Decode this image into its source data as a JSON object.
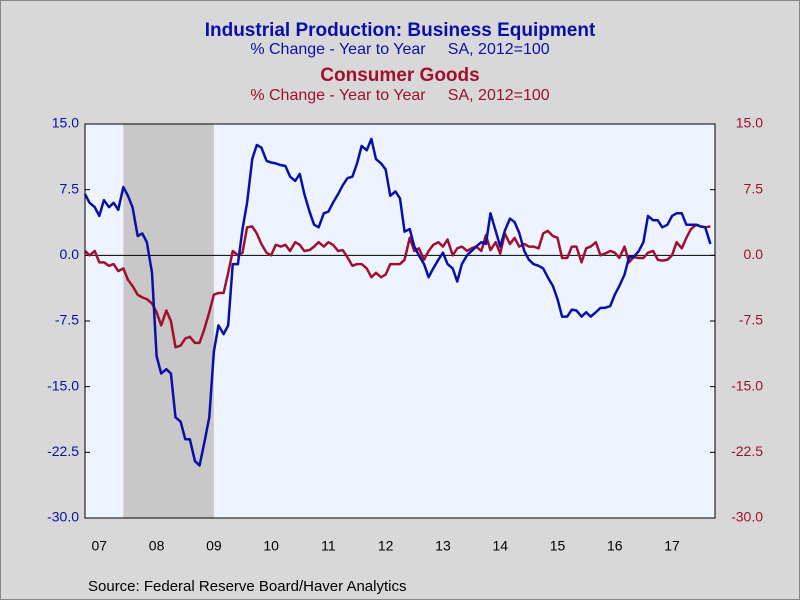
{
  "chart_data": {
    "type": "line",
    "series": [
      {
        "name": "Industrial Production: Business Equipment",
        "subtitle": "% Change - Year to Year     SA, 2012=100",
        "color": "#0a0fa8",
        "axis": "y",
        "values": [
          7.0,
          6.0,
          5.5,
          4.5,
          6.3,
          5.5,
          6.0,
          5.2,
          7.8,
          6.8,
          5.5,
          2.2,
          2.5,
          1.5,
          -2.0,
          -11.5,
          -13.5,
          -13.0,
          -13.5,
          -18.5,
          -19.0,
          -21.0,
          -21.0,
          -23.5,
          -24.0,
          -21.5,
          -18.5,
          -11.0,
          -8.0,
          -9.0,
          -8.0,
          -1.0,
          -1.0,
          3.0,
          6.0,
          11.0,
          12.6,
          12.3,
          10.8,
          10.6,
          10.5,
          10.3,
          10.2,
          9.0,
          8.5,
          9.3,
          7.0,
          5.0,
          3.5,
          3.2,
          4.8,
          5.0,
          6.0,
          7.0,
          8.0,
          8.8,
          9.0,
          10.5,
          12.5,
          12.0,
          13.3,
          11.0,
          10.5,
          9.8,
          6.8,
          7.3,
          6.5,
          2.7,
          3.0,
          1.0,
          0.0,
          -1.0,
          -2.5,
          -1.5,
          -0.5,
          0.3,
          -1.0,
          -1.5,
          -3.0,
          -1.0,
          0.0,
          0.5,
          1.0,
          1.5,
          1.3,
          4.8,
          2.8,
          1.0,
          2.8,
          4.2,
          3.8,
          2.6,
          0.5,
          -0.5,
          -1.0,
          -1.2,
          -1.5,
          -2.5,
          -3.5,
          -5.0,
          -7.0,
          -7.0,
          -6.2,
          -6.3,
          -7.0,
          -6.5,
          -7.0,
          -6.5,
          -6.0,
          -6.0,
          -5.8,
          -4.5,
          -3.5,
          -2.2,
          -0.2,
          -0.2,
          0.5,
          1.5,
          4.5,
          4.0,
          4.0,
          3.2,
          3.5,
          4.5,
          4.8,
          4.8,
          3.5,
          3.5,
          3.5,
          3.3,
          3.2,
          1.3
        ]
      },
      {
        "name": "Consumer Goods",
        "subtitle": "% Change - Year to Year     SA, 2012=100",
        "color": "#a0102e",
        "axis": "y2",
        "values": [
          0.5,
          0.0,
          0.5,
          -0.8,
          -0.8,
          -1.2,
          -1.0,
          -1.8,
          -1.5,
          -2.8,
          -3.5,
          -4.5,
          -4.8,
          -5.0,
          -5.5,
          -6.5,
          -8.0,
          -6.3,
          -7.5,
          -10.5,
          -10.3,
          -9.5,
          -9.3,
          -10.0,
          -10.0,
          -8.5,
          -6.5,
          -4.5,
          -4.3,
          -4.3,
          -2.0,
          0.5,
          0.0,
          0.3,
          3.2,
          3.3,
          2.5,
          1.3,
          0.3,
          0.0,
          1.2,
          1.0,
          1.2,
          0.5,
          1.5,
          1.2,
          0.5,
          0.6,
          1.0,
          1.5,
          1.0,
          1.5,
          1.2,
          0.5,
          0.6,
          -0.2,
          -1.2,
          -1.0,
          -1.0,
          -1.5,
          -2.5,
          -2.0,
          -2.5,
          -2.2,
          -1.0,
          -1.0,
          -1.0,
          -0.5,
          2.0,
          0.5,
          0.8,
          -0.5,
          0.5,
          1.2,
          1.5,
          1.0,
          1.8,
          0.0,
          0.8,
          1.0,
          0.5,
          0.8,
          1.0,
          0.5,
          2.3,
          0.6,
          1.5,
          0.2,
          2.5,
          1.3,
          2.0,
          1.0,
          1.3,
          1.0,
          1.0,
          0.8,
          2.5,
          2.8,
          2.2,
          2.0,
          -0.3,
          -0.3,
          1.0,
          1.0,
          -0.8,
          0.8,
          1.0,
          1.5,
          0.0,
          0.2,
          0.5,
          0.3,
          -0.3,
          1.0,
          -0.8,
          -0.2,
          -0.3,
          -0.3,
          0.3,
          0.5,
          -0.5,
          -0.6,
          -0.5,
          0.0,
          1.5,
          0.8,
          2.0,
          3.0,
          3.5,
          3.3,
          3.2,
          3.3
        ]
      }
    ],
    "x": [
      2007.25,
      2007.33,
      2007.42,
      2007.5,
      2007.58,
      2007.67,
      2007.75,
      2007.83,
      2007.92,
      2008.0,
      2008.08,
      2008.17,
      2008.25,
      2008.33,
      2008.42,
      2008.5,
      2008.58,
      2008.67,
      2008.75,
      2008.83,
      2008.92,
      2009.0,
      2009.08,
      2009.17,
      2009.25,
      2009.33,
      2009.42,
      2009.5,
      2009.58,
      2009.67,
      2009.75,
      2009.83,
      2009.92,
      2010.0,
      2010.08,
      2010.17,
      2010.25,
      2010.33,
      2010.42,
      2010.5,
      2010.58,
      2010.67,
      2010.75,
      2010.83,
      2010.92,
      2011.0,
      2011.08,
      2011.17,
      2011.25,
      2011.33,
      2011.42,
      2011.5,
      2011.58,
      2011.67,
      2011.75,
      2011.83,
      2011.92,
      2012.0,
      2012.08,
      2012.17,
      2012.25,
      2012.33,
      2012.42,
      2012.5,
      2012.58,
      2012.67,
      2012.75,
      2012.83,
      2012.92,
      2013.0,
      2013.08,
      2013.17,
      2013.25,
      2013.33,
      2013.42,
      2013.5,
      2013.58,
      2013.67,
      2013.75,
      2013.83,
      2013.92,
      2014.0,
      2014.08,
      2014.17,
      2014.25,
      2014.33,
      2014.42,
      2014.5,
      2014.58,
      2014.67,
      2014.75,
      2014.83,
      2014.92,
      2015.0,
      2015.08,
      2015.17,
      2015.25,
      2015.33,
      2015.42,
      2015.5,
      2015.58,
      2015.67,
      2015.75,
      2015.83,
      2015.92,
      2016.0,
      2016.08,
      2016.17,
      2016.25,
      2016.33,
      2016.42,
      2016.5,
      2016.58,
      2016.67,
      2016.75,
      2016.83,
      2016.92,
      2017.0,
      2017.08,
      2017.17,
      2017.25,
      2017.33,
      2017.42,
      2017.5,
      2017.58,
      2017.67,
      2017.75,
      2017.83,
      2017.92,
      2018.0,
      2018.08,
      2018.17
    ],
    "xlim": [
      2007.25,
      2018.25
    ],
    "xticks": [
      {
        "value": 2007.5,
        "label": "07"
      },
      {
        "value": 2008.5,
        "label": "08"
      },
      {
        "value": 2009.5,
        "label": "09"
      },
      {
        "value": 2010.5,
        "label": "10"
      },
      {
        "value": 2011.5,
        "label": "11"
      },
      {
        "value": 2012.5,
        "label": "12"
      },
      {
        "value": 2013.5,
        "label": "13"
      },
      {
        "value": 2014.5,
        "label": "14"
      },
      {
        "value": 2015.5,
        "label": "15"
      },
      {
        "value": 2016.5,
        "label": "16"
      },
      {
        "value": 2017.5,
        "label": "17"
      }
    ],
    "ylim": [
      -30,
      15
    ],
    "yticks": [
      {
        "value": 15,
        "label": "15.0"
      },
      7.5,
      {
        "value": 0,
        "label": "0.0"
      },
      -7.5,
      {
        "value": -15,
        "label": "-15.0"
      },
      -22.5,
      {
        "value": -30,
        "label": "-30.0"
      }
    ],
    "y2lim": [
      -30,
      15
    ],
    "y2ticks": [
      {
        "value": 15,
        "label": "15.0"
      },
      7.5,
      {
        "value": 0,
        "label": "0.0"
      },
      -7.5,
      {
        "value": -15,
        "label": "-15.0"
      },
      -22.5,
      {
        "value": -30,
        "label": "-30.0"
      }
    ],
    "recession": [
      2007.92,
      2009.5
    ],
    "source": "Source:  Federal Reserve Board/Haver Analytics"
  }
}
